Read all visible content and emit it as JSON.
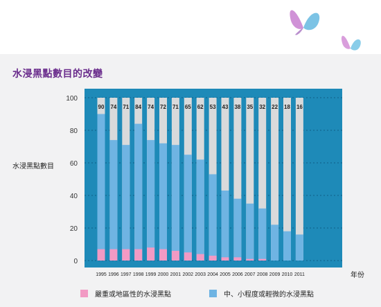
{
  "title": "水浸黑點數目的改變",
  "colors": {
    "plot_bg": "#1e8ab8",
    "bar_bg": "#d9dadb",
    "minor": "#6fb4e3",
    "serious": "#f29ac4",
    "title": "#6a2c8c"
  },
  "legend": [
    {
      "label": "嚴重或地區性的水浸黑點",
      "color": "#f29ac4"
    },
    {
      "label": "中、小程度或輕微的水浸黑點",
      "color": "#6fb4e3"
    }
  ],
  "chart_data": {
    "type": "bar",
    "title": "水浸黑點數目的改變",
    "xlabel": "年份",
    "ylabel": "水浸黑點數目",
    "ylim": [
      0,
      100
    ],
    "yticks": [
      0,
      20,
      40,
      60,
      80,
      100
    ],
    "grid": true,
    "stacked": true,
    "categories": [
      "1995",
      "1996",
      "1997",
      "1998",
      "1999",
      "2000",
      "2001",
      "2002",
      "2003",
      "2004",
      "2005",
      "2006",
      "2007",
      "2008",
      "2009",
      "2010",
      "2011"
    ],
    "totals": [
      90,
      74,
      71,
      84,
      74,
      72,
      71,
      65,
      62,
      53,
      43,
      38,
      35,
      32,
      22,
      18,
      16
    ],
    "series": [
      {
        "name": "嚴重或地區性的水浸黑點",
        "values": [
          7,
          7,
          7,
          7,
          8,
          7,
          6,
          5,
          4,
          3,
          2,
          2,
          1,
          1,
          0,
          0,
          0
        ]
      },
      {
        "name": "中、小程度或輕微的水浸黑點",
        "values": [
          83,
          67,
          64,
          77,
          66,
          65,
          65,
          60,
          58,
          50,
          41,
          36,
          34,
          31,
          22,
          18,
          16
        ]
      }
    ]
  }
}
